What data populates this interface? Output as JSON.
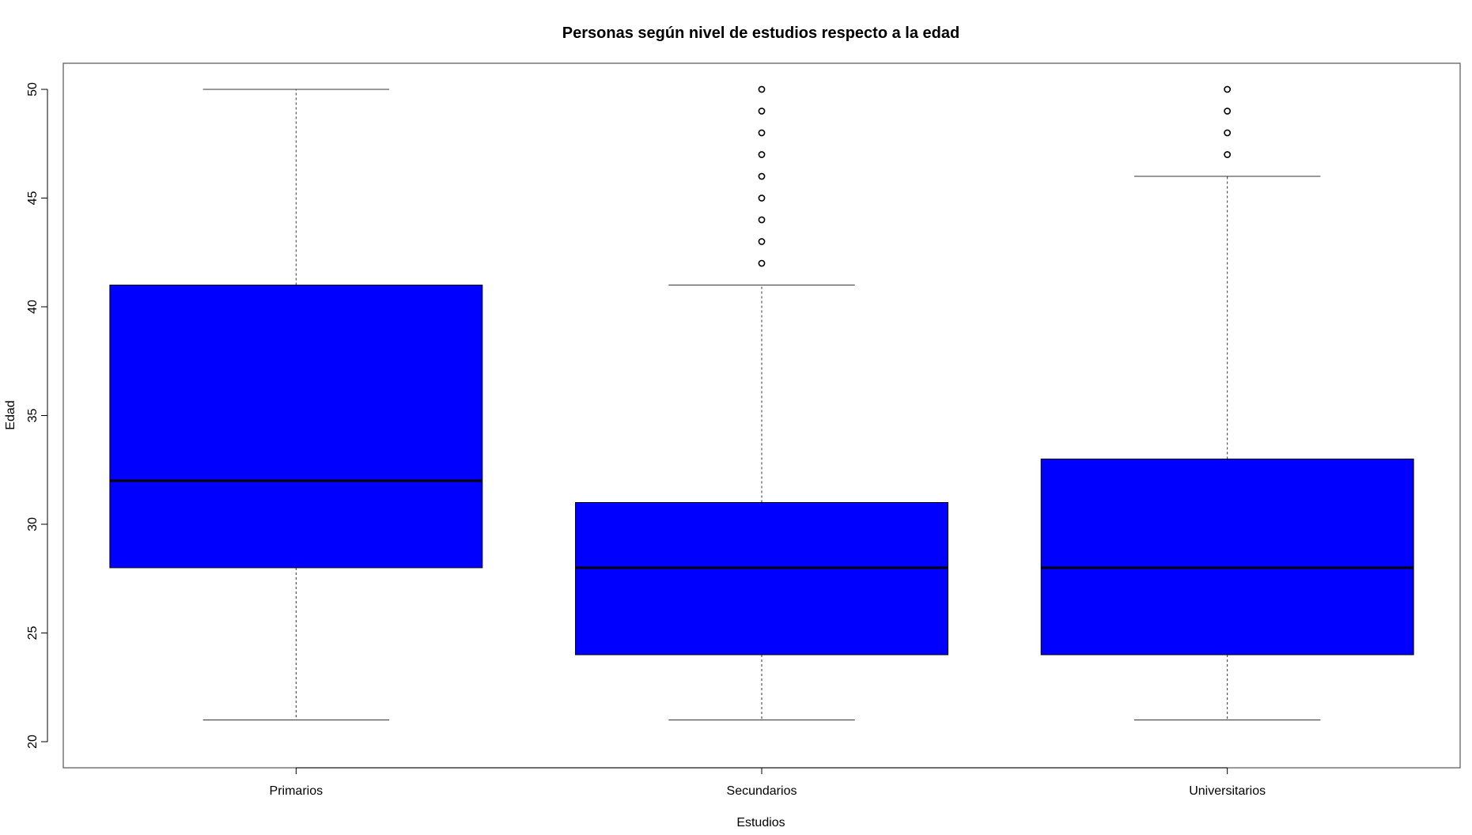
{
  "chart_data": {
    "type": "boxplot",
    "title": "Personas según nivel de estudios respecto a la edad",
    "xlabel": "Estudios",
    "ylabel": "Edad",
    "ylim": [
      20,
      50
    ],
    "yticks": [
      20,
      25,
      30,
      35,
      40,
      45,
      50
    ],
    "fill_color": "#0000ff",
    "grid": false,
    "legend": "none",
    "categories": [
      "Primarios",
      "Secundarios",
      "Universitarios"
    ],
    "boxes": [
      {
        "category": "Primarios",
        "whisker_low": 21,
        "q1": 28,
        "median": 32,
        "q3": 41,
        "whisker_high": 50,
        "outliers": []
      },
      {
        "category": "Secundarios",
        "whisker_low": 21,
        "q1": 24,
        "median": 28,
        "q3": 31,
        "whisker_high": 41,
        "outliers": [
          42,
          43,
          44,
          45,
          46,
          47,
          48,
          49,
          50
        ]
      },
      {
        "category": "Universitarios",
        "whisker_low": 21,
        "q1": 24,
        "median": 28,
        "q3": 33,
        "whisker_high": 46,
        "outliers": [
          47,
          48,
          49,
          50
        ]
      }
    ]
  }
}
